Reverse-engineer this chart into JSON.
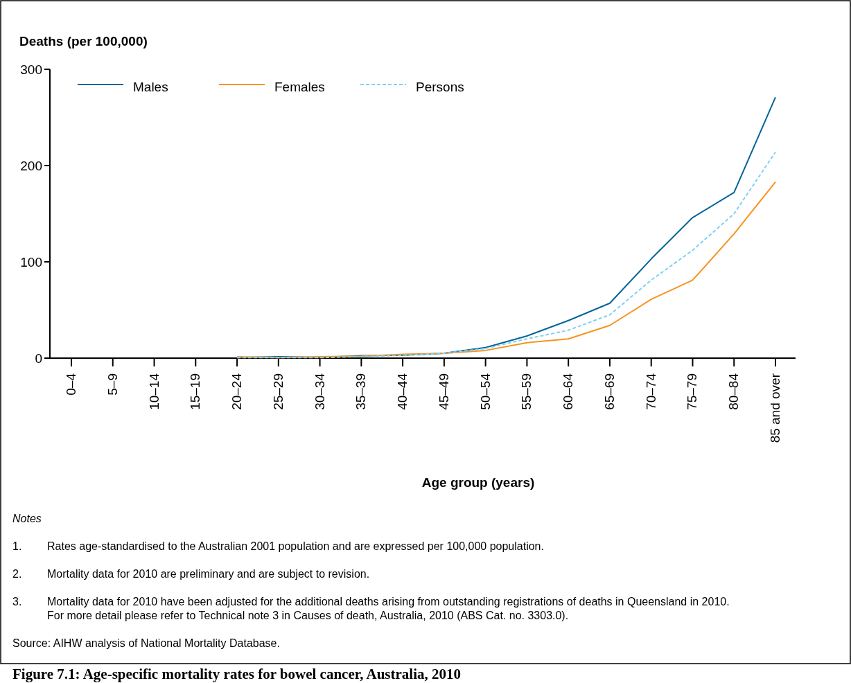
{
  "chart_data": {
    "type": "line",
    "title": "Figure 7.1: Age-specific mortality rates for bowel cancer, Australia, 2010",
    "xlabel": "Age group (years)",
    "ylabel": "Deaths (per 100,000)",
    "categories": [
      "0–4",
      "5–9",
      "10–14",
      "15–19",
      "20–24",
      "25–29",
      "30–34",
      "35–39",
      "40–44",
      "45–49",
      "50–54",
      "55–59",
      "60–64",
      "65–69",
      "70–74",
      "75–79",
      "80–84",
      "85 and over"
    ],
    "series": [
      {
        "name": "Males",
        "color": "#00639a",
        "line_style": "solid",
        "values": [
          null,
          null,
          null,
          null,
          0.5,
          1.5,
          0.8,
          2.5,
          3,
          5,
          11,
          23,
          39,
          57,
          103,
          146,
          172,
          271
        ]
      },
      {
        "name": "Females",
        "color": "#f7931e",
        "line_style": "solid",
        "values": [
          null,
          null,
          null,
          null,
          1.5,
          0.5,
          1.5,
          2,
          4,
          5,
          8,
          16,
          20,
          34,
          61,
          81,
          129,
          183
        ]
      },
      {
        "name": "Persons",
        "color": "#7fd0f4",
        "line_style": "dashed",
        "values": [
          null,
          null,
          null,
          null,
          0.5,
          0.5,
          0.5,
          1.5,
          3,
          5,
          10,
          20,
          29,
          45,
          81,
          112,
          150,
          214
        ]
      }
    ],
    "ylim": [
      0,
      300
    ],
    "yticks": [
      0,
      100,
      200,
      300
    ],
    "grid": false,
    "legend": "top left",
    "annotations": [
      "Notes",
      "1.\tRates age-standardised to the Australian 2001 population and are expressed per 100,000 population.",
      "2.\tMortality data for 2010 are preliminary and are subject to revision.",
      "3.\tMortality data for 2010 have been adjusted for the additional deaths arising from outstanding registrations of deaths in Queensland in 2010. For more detail please refer to Technical note 3 in Causes of death, Australia, 2010 (ABS Cat. no. 3303.0).",
      "Source: AIHW analysis of National Mortality Database."
    ]
  }
}
